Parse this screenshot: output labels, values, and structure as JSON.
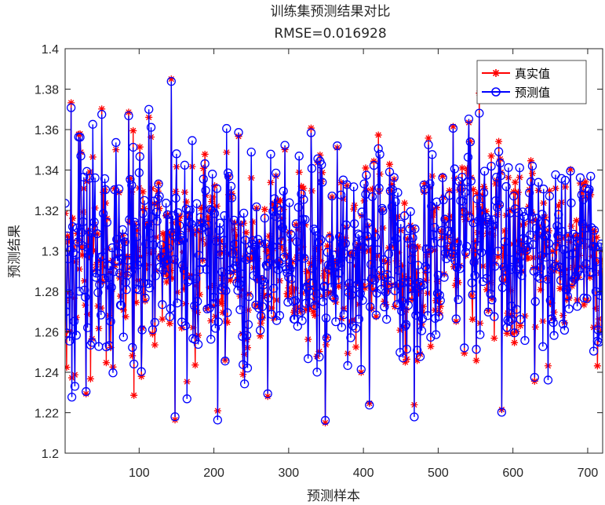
{
  "chart_data": {
    "type": "line",
    "title": "训练集预测结果对比",
    "subtitle": "RMSE=0.016928",
    "xlabel": "预测样本",
    "ylabel": "预测结果",
    "xlim": [
      1,
      720
    ],
    "ylim": [
      1.2,
      1.4
    ],
    "xticks": [
      100,
      200,
      300,
      400,
      500,
      600,
      700
    ],
    "yticks": [
      1.2,
      1.22,
      1.24,
      1.26,
      1.28,
      1.3,
      1.32,
      1.34,
      1.36,
      1.38,
      1.4
    ],
    "ytick_labels": [
      "1.2",
      "1.22",
      "1.24",
      "1.26",
      "1.28",
      "1.3",
      "1.32",
      "1.34",
      "1.36",
      "1.38",
      "1.4"
    ],
    "grid": false,
    "legend_position": "top-right",
    "n_points": 720,
    "series": [
      {
        "name": "真实值",
        "color": "#ff0000",
        "marker": "asterisk"
      },
      {
        "name": "预测值",
        "color": "#0000ff",
        "marker": "circle"
      }
    ]
  }
}
